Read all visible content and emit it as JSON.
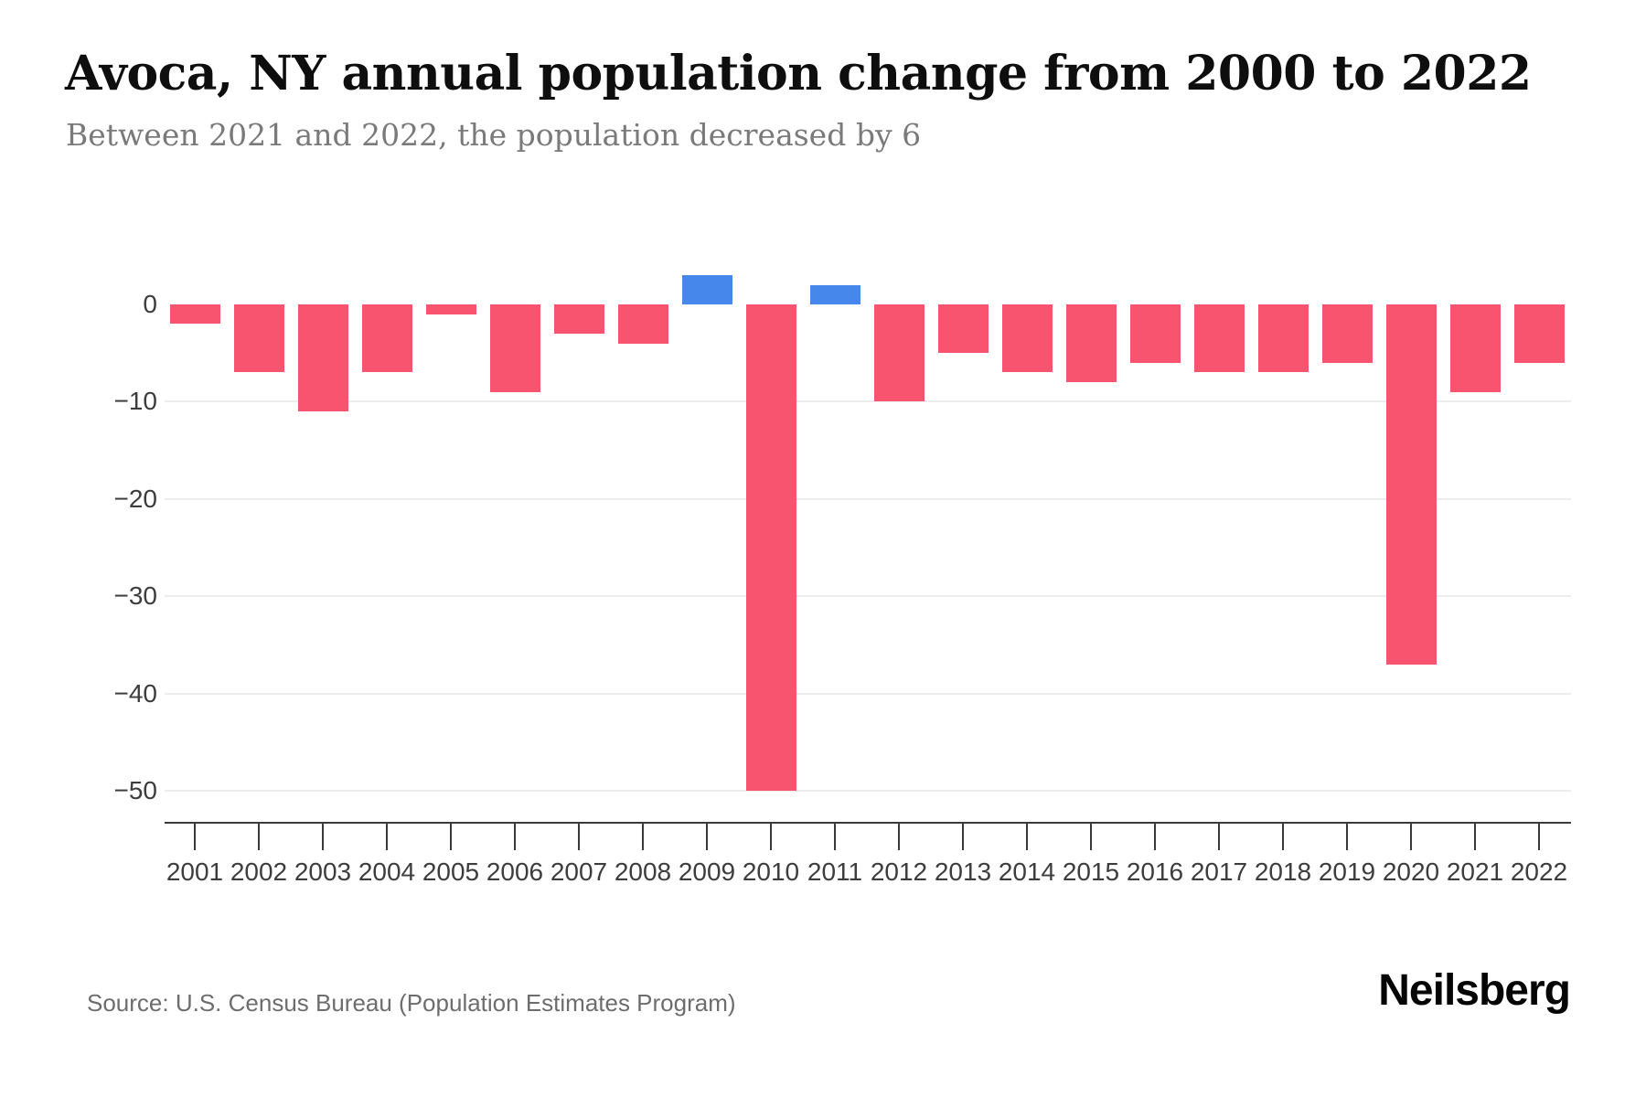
{
  "header": {
    "title": "Avoca, NY annual population change from 2000 to 2022",
    "subtitle": "Between 2021 and 2022, the population decreased by 6"
  },
  "footer": {
    "source": "Source: U.S. Census Bureau (Population Estimates Program)",
    "brand": "Neilsberg"
  },
  "colors": {
    "negative_bar": "#F9546F",
    "positive_bar": "#4687EC",
    "gridline": "#EDEDED",
    "axis": "#3A3A3A",
    "tick_label": "#3D3D3D",
    "title_text": "#0E0E0E",
    "subtitle_text": "#7A7A7A",
    "source_text": "#6D6D6D"
  },
  "chart_data": {
    "type": "bar",
    "title": "Avoca, NY annual population change from 2000 to 2022",
    "subtitle": "Between 2021 and 2022, the population decreased by 6",
    "categories": [
      "2001",
      "2002",
      "2003",
      "2004",
      "2005",
      "2006",
      "2007",
      "2008",
      "2009",
      "2010",
      "2011",
      "2012",
      "2013",
      "2014",
      "2015",
      "2016",
      "2017",
      "2018",
      "2019",
      "2020",
      "2021",
      "2022"
    ],
    "values": [
      -2,
      -7,
      -11,
      -7,
      -1,
      -9,
      -3,
      -4,
      3,
      -50,
      2,
      -10,
      -5,
      -7,
      -8,
      -6,
      -7,
      -7,
      -6,
      -37,
      -9,
      -6
    ],
    "xlabel": "",
    "ylabel": "",
    "y_ticks": [
      0,
      -10,
      -20,
      -30,
      -40,
      -50
    ],
    "y_tick_labels": [
      "0",
      "−10",
      "−20",
      "−30",
      "−40",
      "−50"
    ],
    "ylim": [
      -53,
      5
    ],
    "grid": "horizontal",
    "legend": "none",
    "bar_colors": {
      "positive": "#4687EC",
      "negative": "#F9546F"
    }
  }
}
